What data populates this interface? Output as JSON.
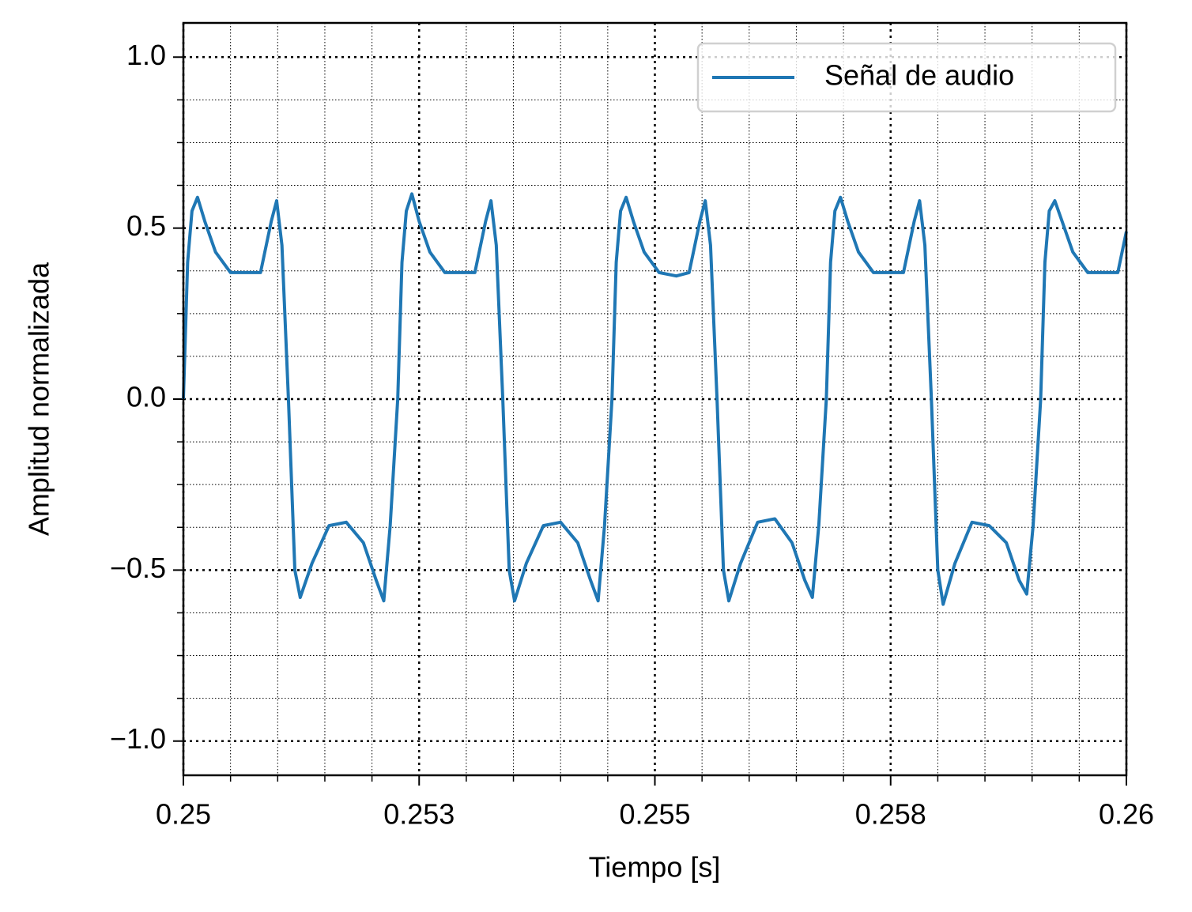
{
  "chart_data": {
    "type": "line",
    "xlabel": "Tiempo [s]",
    "ylabel": "Amplitud normalizada",
    "xlim": [
      0.25,
      0.26
    ],
    "ylim": [
      -1.1,
      1.1
    ],
    "xticks": [
      0.25,
      {
        "value": 0.2525,
        "label": "0.253"
      },
      0.255,
      {
        "value": 0.2575,
        "label": "0.258"
      },
      0.26
    ],
    "yticks": [
      {
        "value": -1,
        "label": "−1.0"
      },
      {
        "value": -0.5,
        "label": "−0.5"
      },
      {
        "value": 0,
        "label": "0.0"
      },
      {
        "value": 0.5,
        "label": "0.5"
      },
      {
        "value": 1,
        "label": "1.0"
      }
    ],
    "xminorticks": [
      0.2505,
      0.251,
      0.2515,
      0.252,
      0.253,
      0.2535,
      0.254,
      0.2545,
      0.2555,
      0.256,
      0.2565,
      0.257,
      0.258,
      0.2585,
      0.259,
      0.2595
    ],
    "yminorticks": [
      -0.875,
      -0.75,
      -0.625,
      -0.375,
      -0.25,
      -0.125,
      0.125,
      0.25,
      0.375,
      0.625,
      0.75,
      0.875
    ],
    "grid": true,
    "legend": "upper right",
    "x": [
      0.25,
      0.250045,
      0.250091,
      0.25015,
      0.250227,
      0.250341,
      0.2505,
      0.250682,
      0.250818,
      0.250932,
      0.250989,
      0.251045,
      0.251114,
      0.251182,
      0.251239,
      0.251364,
      0.251545,
      0.251727,
      0.251909,
      0.252045,
      0.252125,
      0.252193,
      0.252273,
      0.252318,
      0.252364,
      0.252423,
      0.2525,
      0.252614,
      0.252773,
      0.252955,
      0.253091,
      0.253205,
      0.253262,
      0.253318,
      0.253387,
      0.253455,
      0.253512,
      0.253637,
      0.253818,
      0.254,
      0.254182,
      0.254318,
      0.254398,
      0.254466,
      0.254545,
      0.25459,
      0.254636,
      0.254695,
      0.254772,
      0.254886,
      0.255045,
      0.255227,
      0.255363,
      0.255477,
      0.255534,
      0.25559,
      0.255659,
      0.255727,
      0.255784,
      0.255909,
      0.25609,
      0.256272,
      0.256454,
      0.25659,
      0.25667,
      0.256738,
      0.256818,
      0.256863,
      0.256909,
      0.256968,
      0.257045,
      0.257159,
      0.257318,
      0.2575,
      0.257636,
      0.25775,
      0.257807,
      0.257863,
      0.257932,
      0.258,
      0.258057,
      0.258182,
      0.258363,
      0.258545,
      0.258727,
      0.258863,
      0.258943,
      0.259011,
      0.259091,
      0.259136,
      0.259182,
      0.259241,
      0.259318,
      0.259432,
      0.259591,
      0.259773,
      0.259909,
      0.26
    ],
    "series": [
      {
        "name": "Señal de audio",
        "color": "#1f77b4",
        "values": [
          0,
          0.4,
          0.55,
          0.59,
          0.52,
          0.43,
          0.37,
          0.37,
          0.37,
          0.52,
          0.58,
          0.45,
          0.0,
          -0.5,
          -0.58,
          -0.48,
          -0.37,
          -0.36,
          -0.42,
          -0.53,
          -0.59,
          -0.37,
          0,
          0.4,
          0.55,
          0.6,
          0.52,
          0.43,
          0.37,
          0.37,
          0.37,
          0.52,
          0.58,
          0.45,
          0.0,
          -0.5,
          -0.59,
          -0.48,
          -0.37,
          -0.36,
          -0.42,
          -0.53,
          -0.59,
          -0.37,
          0,
          0.4,
          0.55,
          0.59,
          0.52,
          0.43,
          0.37,
          0.36,
          0.37,
          0.52,
          0.58,
          0.45,
          0.0,
          -0.5,
          -0.59,
          -0.48,
          -0.36,
          -0.35,
          -0.42,
          -0.53,
          -0.58,
          -0.37,
          0,
          0.4,
          0.55,
          0.59,
          0.52,
          0.43,
          0.37,
          0.37,
          0.37,
          0.52,
          0.58,
          0.45,
          0.0,
          -0.5,
          -0.6,
          -0.48,
          -0.36,
          -0.37,
          -0.42,
          -0.53,
          -0.57,
          -0.37,
          0,
          0.4,
          0.55,
          0.58,
          0.52,
          0.43,
          0.37,
          0.37,
          0.37,
          0.49
        ]
      }
    ]
  }
}
